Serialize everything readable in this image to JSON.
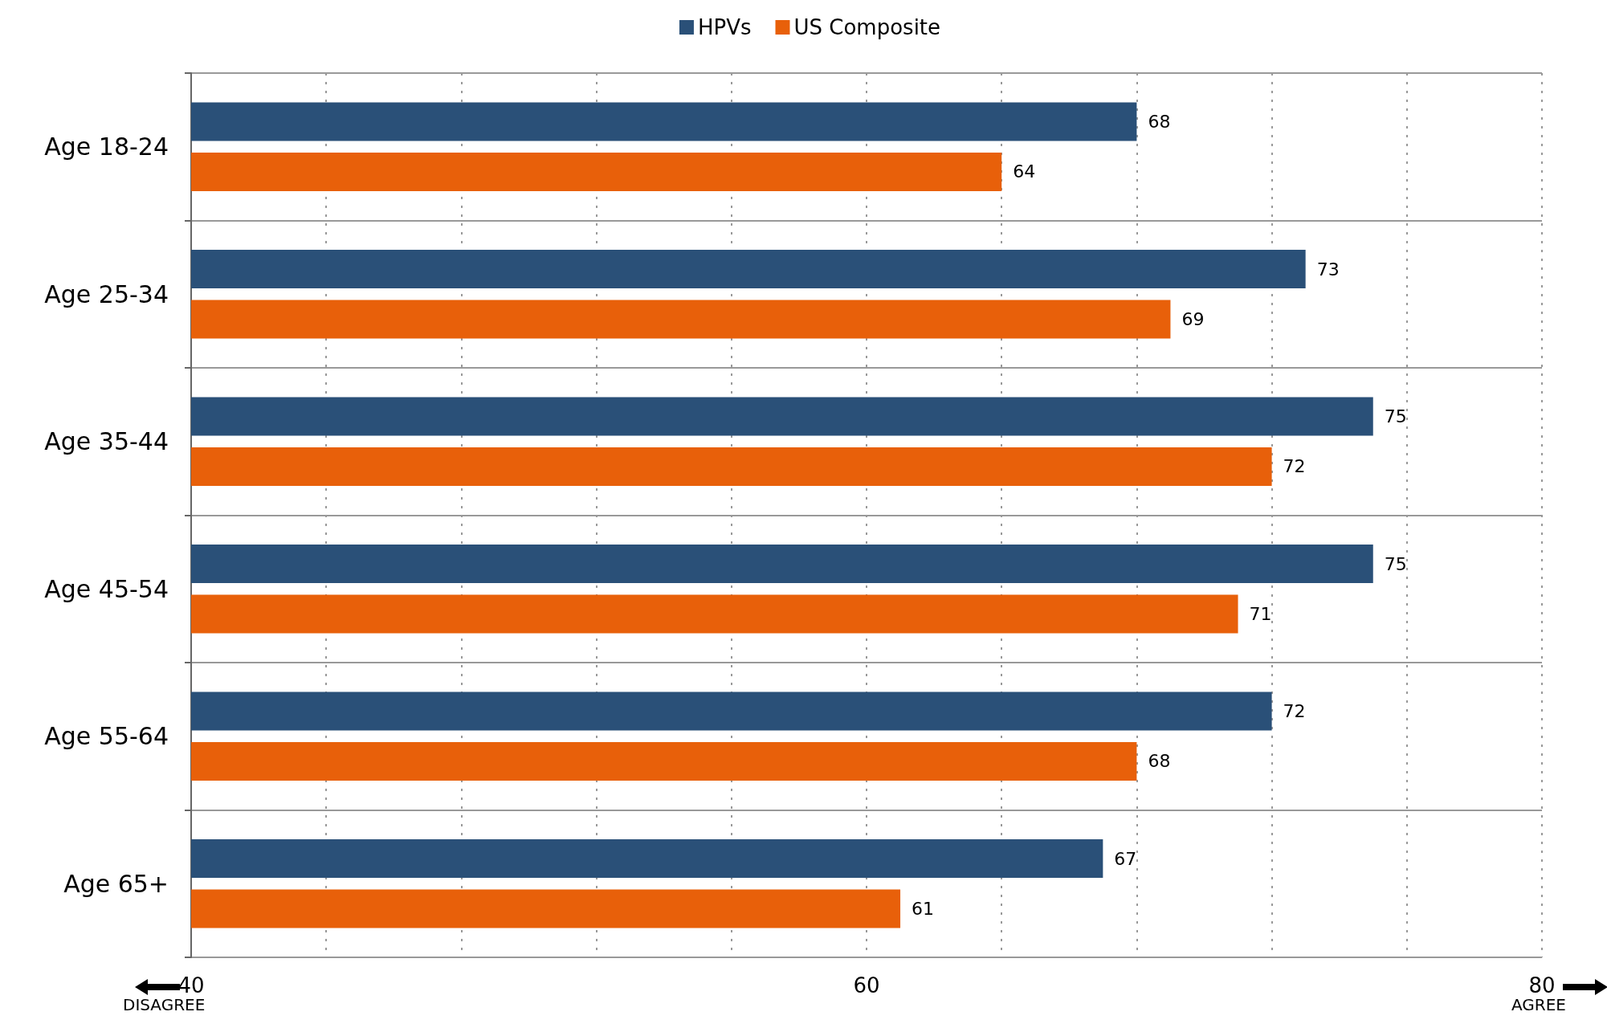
{
  "chart_data": {
    "type": "bar",
    "orientation": "horizontal",
    "categories": [
      "Age 18-24",
      "Age 25-34",
      "Age 35-44",
      "Age 45-54",
      "Age 55-64",
      "Age 65+"
    ],
    "series": [
      {
        "name": "HPVs",
        "color": "#2a5078",
        "values": [
          68,
          73,
          75,
          75,
          72,
          67
        ]
      },
      {
        "name": "US Composite",
        "color": "#e8600a",
        "values": [
          64,
          69,
          72,
          71,
          68,
          61
        ]
      }
    ],
    "xlim": [
      40,
      80
    ],
    "xticks": [
      40,
      {
        "value": 44,
        "label": null
      },
      {
        "value": 48,
        "label": null
      },
      {
        "value": 52,
        "label": null
      },
      {
        "value": 56,
        "label": null
      },
      60,
      {
        "value": 64,
        "label": null
      },
      {
        "value": 68,
        "label": null
      },
      {
        "value": 72,
        "label": null
      },
      {
        "value": 76,
        "label": null
      },
      80
    ],
    "annotations": [
      "DISAGREE",
      "AGREE"
    ],
    "data_labels": true,
    "grid": true,
    "legend": "top"
  }
}
